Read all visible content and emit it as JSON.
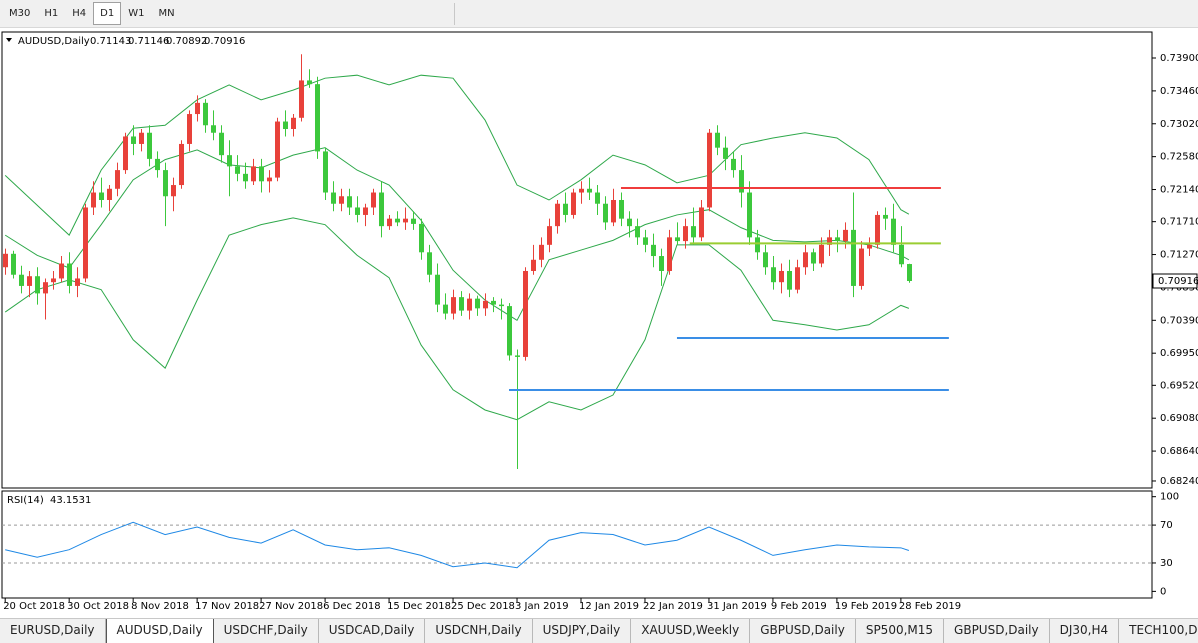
{
  "toolbar": {
    "timeframes": [
      "M30",
      "H1",
      "H4",
      "D1",
      "W1",
      "MN"
    ],
    "active": 3
  },
  "chart_data": [
    {
      "type": "candlestick",
      "title": "AUDUSD,Daily",
      "up_color": "#e8413a",
      "down_color": "#3cc83c",
      "ohlc": [
        [
          0.711,
          0.7135,
          0.71,
          0.7128
        ],
        [
          0.7128,
          0.7132,
          0.7095,
          0.71
        ],
        [
          0.71,
          0.7112,
          0.7075,
          0.7085
        ],
        [
          0.7085,
          0.7105,
          0.707,
          0.7098
        ],
        [
          0.7098,
          0.711,
          0.706,
          0.7075
        ],
        [
          0.7075,
          0.7095,
          0.704,
          0.709
        ],
        [
          0.709,
          0.7105,
          0.708,
          0.7095
        ],
        [
          0.7095,
          0.7125,
          0.709,
          0.7115
        ],
        [
          0.7115,
          0.713,
          0.7075,
          0.7085
        ],
        [
          0.7085,
          0.711,
          0.707,
          0.7095
        ],
        [
          0.7095,
          0.7195,
          0.709,
          0.719
        ],
        [
          0.719,
          0.7225,
          0.718,
          0.721
        ],
        [
          0.721,
          0.723,
          0.719,
          0.72
        ],
        [
          0.72,
          0.722,
          0.7185,
          0.7215
        ],
        [
          0.7215,
          0.725,
          0.7205,
          0.724
        ],
        [
          0.724,
          0.729,
          0.7235,
          0.7285
        ],
        [
          0.7285,
          0.73,
          0.726,
          0.7275
        ],
        [
          0.7275,
          0.7295,
          0.7265,
          0.729
        ],
        [
          0.729,
          0.73,
          0.7245,
          0.7255
        ],
        [
          0.7255,
          0.7265,
          0.723,
          0.724
        ],
        [
          0.724,
          0.725,
          0.7165,
          0.7205
        ],
        [
          0.7205,
          0.723,
          0.7185,
          0.722
        ],
        [
          0.722,
          0.728,
          0.7215,
          0.7275
        ],
        [
          0.7275,
          0.732,
          0.7265,
          0.7315
        ],
        [
          0.7315,
          0.734,
          0.7305,
          0.733
        ],
        [
          0.733,
          0.7335,
          0.729,
          0.73
        ],
        [
          0.73,
          0.732,
          0.728,
          0.729
        ],
        [
          0.729,
          0.73,
          0.725,
          0.726
        ],
        [
          0.726,
          0.728,
          0.7205,
          0.7245
        ],
        [
          0.7245,
          0.726,
          0.7225,
          0.7235
        ],
        [
          0.7235,
          0.725,
          0.7215,
          0.7225
        ],
        [
          0.7225,
          0.7255,
          0.722,
          0.7245
        ],
        [
          0.7245,
          0.7255,
          0.721,
          0.7225
        ],
        [
          0.7225,
          0.724,
          0.721,
          0.723
        ],
        [
          0.723,
          0.731,
          0.7225,
          0.7305
        ],
        [
          0.7305,
          0.732,
          0.7285,
          0.7295
        ],
        [
          0.7295,
          0.7315,
          0.7285,
          0.731
        ],
        [
          0.731,
          0.7395,
          0.7305,
          0.736
        ],
        [
          0.736,
          0.7375,
          0.735,
          0.7355
        ],
        [
          0.7355,
          0.7365,
          0.7255,
          0.7265
        ],
        [
          0.7265,
          0.727,
          0.72,
          0.721
        ],
        [
          0.721,
          0.7225,
          0.7185,
          0.7195
        ],
        [
          0.7195,
          0.7215,
          0.7185,
          0.7205
        ],
        [
          0.7205,
          0.7215,
          0.718,
          0.719
        ],
        [
          0.719,
          0.7205,
          0.717,
          0.718
        ],
        [
          0.718,
          0.7195,
          0.7165,
          0.719
        ],
        [
          0.719,
          0.7215,
          0.718,
          0.721
        ],
        [
          0.721,
          0.7225,
          0.715,
          0.7165
        ],
        [
          0.7165,
          0.718,
          0.716,
          0.7175
        ],
        [
          0.7175,
          0.7185,
          0.7165,
          0.717
        ],
        [
          0.717,
          0.719,
          0.716,
          0.7175
        ],
        [
          0.7175,
          0.7185,
          0.716,
          0.7168
        ],
        [
          0.7168,
          0.7175,
          0.712,
          0.713
        ],
        [
          0.713,
          0.714,
          0.709,
          0.71
        ],
        [
          0.71,
          0.7115,
          0.705,
          0.706
        ],
        [
          0.706,
          0.7075,
          0.704,
          0.7048
        ],
        [
          0.7048,
          0.708,
          0.704,
          0.707
        ],
        [
          0.707,
          0.7078,
          0.7045,
          0.7052
        ],
        [
          0.7052,
          0.7075,
          0.704,
          0.7068
        ],
        [
          0.7068,
          0.7072,
          0.7045,
          0.7055
        ],
        [
          0.7055,
          0.7075,
          0.7045,
          0.7065
        ],
        [
          0.7065,
          0.707,
          0.705,
          0.706
        ],
        [
          0.706,
          0.7068,
          0.704,
          0.7058
        ],
        [
          0.7058,
          0.7062,
          0.6985,
          0.6992
        ],
        [
          0.6992,
          0.7,
          0.684,
          0.699
        ],
        [
          0.699,
          0.711,
          0.6985,
          0.7105
        ],
        [
          0.7105,
          0.714,
          0.71,
          0.712
        ],
        [
          0.712,
          0.715,
          0.711,
          0.714
        ],
        [
          0.714,
          0.7175,
          0.713,
          0.7165
        ],
        [
          0.7165,
          0.72,
          0.7155,
          0.7195
        ],
        [
          0.7195,
          0.721,
          0.717,
          0.718
        ],
        [
          0.718,
          0.7215,
          0.7175,
          0.721
        ],
        [
          0.721,
          0.7225,
          0.7195,
          0.7215
        ],
        [
          0.7215,
          0.723,
          0.72,
          0.721
        ],
        [
          0.721,
          0.722,
          0.718,
          0.7195
        ],
        [
          0.7195,
          0.7205,
          0.716,
          0.717
        ],
        [
          0.717,
          0.7215,
          0.7165,
          0.72
        ],
        [
          0.72,
          0.721,
          0.7165,
          0.7175
        ],
        [
          0.7175,
          0.7185,
          0.715,
          0.7165
        ],
        [
          0.7165,
          0.7175,
          0.714,
          0.715
        ],
        [
          0.715,
          0.716,
          0.713,
          0.714
        ],
        [
          0.714,
          0.7155,
          0.711,
          0.7125
        ],
        [
          0.7125,
          0.7135,
          0.7085,
          0.7105
        ],
        [
          0.7105,
          0.716,
          0.71,
          0.715
        ],
        [
          0.715,
          0.717,
          0.714,
          0.7145
        ],
        [
          0.7145,
          0.7175,
          0.7135,
          0.7165
        ],
        [
          0.7165,
          0.719,
          0.714,
          0.715
        ],
        [
          0.715,
          0.72,
          0.7145,
          0.719
        ],
        [
          0.719,
          0.7295,
          0.7185,
          0.729
        ],
        [
          0.729,
          0.73,
          0.726,
          0.727
        ],
        [
          0.727,
          0.7285,
          0.724,
          0.7255
        ],
        [
          0.7255,
          0.7265,
          0.723,
          0.724
        ],
        [
          0.724,
          0.726,
          0.719,
          0.721
        ],
        [
          0.721,
          0.7225,
          0.714,
          0.715
        ],
        [
          0.715,
          0.716,
          0.712,
          0.713
        ],
        [
          0.713,
          0.714,
          0.71,
          0.711
        ],
        [
          0.711,
          0.7125,
          0.708,
          0.709
        ],
        [
          0.709,
          0.7115,
          0.7075,
          0.7105
        ],
        [
          0.7105,
          0.712,
          0.707,
          0.708
        ],
        [
          0.708,
          0.712,
          0.7075,
          0.711
        ],
        [
          0.711,
          0.714,
          0.71,
          0.713
        ],
        [
          0.713,
          0.7135,
          0.7105,
          0.7115
        ],
        [
          0.7115,
          0.715,
          0.711,
          0.714
        ],
        [
          0.714,
          0.716,
          0.7125,
          0.715
        ],
        [
          0.715,
          0.716,
          0.713,
          0.7145
        ],
        [
          0.7145,
          0.717,
          0.7135,
          0.716
        ],
        [
          0.716,
          0.721,
          0.707,
          0.7085
        ],
        [
          0.7085,
          0.7145,
          0.708,
          0.7135
        ],
        [
          0.7135,
          0.715,
          0.7125,
          0.714
        ],
        [
          0.714,
          0.7185,
          0.7135,
          0.718
        ],
        [
          0.718,
          0.719,
          0.716,
          0.7175
        ],
        [
          0.7175,
          0.7195,
          0.713,
          0.714
        ],
        [
          0.714,
          0.7165,
          0.711,
          0.7114
        ],
        [
          0.71143,
          0.71146,
          0.70892,
          0.70916
        ]
      ],
      "bands": {
        "color": "#2ea84a",
        "x": [
          0,
          4,
          8,
          12,
          16,
          20,
          24,
          28,
          32,
          36,
          40,
          44,
          48,
          52,
          56,
          60,
          64,
          68,
          72,
          76,
          80,
          84,
          88,
          92,
          96,
          100,
          104,
          108,
          112,
          113
        ],
        "upper": [
          0.7233,
          0.7193,
          0.7153,
          0.724,
          0.7296,
          0.73,
          0.7334,
          0.7354,
          0.7334,
          0.7347,
          0.7363,
          0.7367,
          0.7354,
          0.7367,
          0.7363,
          0.7307,
          0.722,
          0.72,
          0.7227,
          0.726,
          0.7247,
          0.7223,
          0.7233,
          0.7274,
          0.7283,
          0.729,
          0.7283,
          0.7254,
          0.7187,
          0.7181
        ],
        "middle": [
          0.7153,
          0.7126,
          0.7109,
          0.7167,
          0.7227,
          0.7254,
          0.7267,
          0.7247,
          0.7243,
          0.726,
          0.727,
          0.724,
          0.722,
          0.7173,
          0.7106,
          0.7066,
          0.7039,
          0.712,
          0.7133,
          0.7146,
          0.7167,
          0.718,
          0.7187,
          0.7163,
          0.7146,
          0.7144,
          0.7146,
          0.714,
          0.7126,
          0.712
        ],
        "lower": [
          0.705,
          0.708,
          0.7093,
          0.708,
          0.7013,
          0.6975,
          0.7066,
          0.7153,
          0.7167,
          0.7176,
          0.7167,
          0.7126,
          0.7096,
          0.7006,
          0.6946,
          0.6919,
          0.6906,
          0.693,
          0.6919,
          0.6939,
          0.7013,
          0.714,
          0.714,
          0.7106,
          0.7039,
          0.7033,
          0.7026,
          0.7033,
          0.7059,
          0.7055
        ]
      },
      "levels": [
        {
          "value": 0.7216,
          "color": "#f03c3c",
          "from": 77,
          "to": 117
        },
        {
          "value": 0.7142,
          "color": "#9acd32",
          "from": 85.6,
          "to": 117
        },
        {
          "value": 0.70153,
          "color": "#3a8ee6",
          "from": 84,
          "to": 118
        },
        {
          "value": 0.69457,
          "color": "#3a8ee6",
          "from": 63,
          "to": 118
        }
      ],
      "xlim": [
        -0.4,
        143.4
      ],
      "xticks": [
        {
          "value": 0,
          "label": "20 Oct 2018"
        },
        {
          "value": 8,
          "label": "30 Oct 2018"
        },
        {
          "value": 16,
          "label": "8 Nov 2018"
        },
        {
          "value": 24,
          "label": "17 Nov 2018"
        },
        {
          "value": 32,
          "label": "27 Nov 2018"
        },
        {
          "value": 40,
          "label": "6 Dec 2018"
        },
        {
          "value": 48,
          "label": "15 Dec 2018"
        },
        {
          "value": 56,
          "label": "25 Dec 2018"
        },
        {
          "value": 64,
          "label": "3 Jan 2019"
        },
        {
          "value": 72,
          "label": "12 Jan 2019"
        },
        {
          "value": 80,
          "label": "22 Jan 2019"
        },
        {
          "value": 88,
          "label": "31 Jan 2019"
        },
        {
          "value": 96,
          "label": "9 Feb 2019"
        },
        {
          "value": 104,
          "label": "19 Feb 2019"
        },
        {
          "value": 112,
          "label": "28 Feb 2019"
        }
      ],
      "ylim": [
        0.68146,
        0.74248
      ],
      "yticks": [
        {
          "value": 0.739,
          "label": "0.73900"
        },
        {
          "value": 0.7346,
          "label": "0.73460"
        },
        {
          "value": 0.7302,
          "label": "0.73020"
        },
        {
          "value": 0.7258,
          "label": "0.72580"
        },
        {
          "value": 0.7214,
          "label": "0.72140"
        },
        {
          "value": 0.7171,
          "label": "0.71710"
        },
        {
          "value": 0.7127,
          "label": "0.71270"
        },
        {
          "value": 0.7083,
          "label": "0.70830"
        },
        {
          "value": 0.7039,
          "label": "0.70390"
        },
        {
          "value": 0.6995,
          "label": "0.69950"
        },
        {
          "value": 0.6952,
          "label": "0.69520"
        },
        {
          "value": 0.6908,
          "label": "0.69080"
        },
        {
          "value": 0.6864,
          "label": "0.68640"
        },
        {
          "value": 0.6824,
          "label": "0.68240"
        }
      ]
    },
    {
      "type": "line",
      "title": "RSI(14)",
      "color": "#1e88e5",
      "x": [
        0,
        4,
        8,
        12,
        16,
        20,
        24,
        28,
        32,
        36,
        40,
        44,
        48,
        52,
        56,
        60,
        64,
        68,
        72,
        76,
        80,
        84,
        88,
        92,
        96,
        100,
        104,
        108,
        112,
        113
      ],
      "values": [
        44,
        36,
        44,
        60,
        73,
        60,
        68,
        57,
        51,
        65,
        49,
        44,
        46,
        38,
        26,
        30,
        25,
        54,
        62,
        60,
        49,
        54,
        68,
        54,
        38,
        44,
        49,
        47,
        46,
        43.1531
      ],
      "xlim": [
        -0.4,
        143.4
      ],
      "ylim": [
        -7,
        106
      ],
      "yticks": [
        100,
        70,
        30,
        0
      ],
      "levels": [
        70,
        30
      ]
    }
  ],
  "tabs": {
    "items": [
      "EURUSD,Daily",
      "AUDUSD,Daily",
      "USDCHF,Daily",
      "USDCAD,Daily",
      "USDCNH,Daily",
      "USDJPY,Daily",
      "XAUUSD,Weekly",
      "GBPUSD,Daily",
      "SP500,M15",
      "GBPUSD,Daily",
      "DJ30,H4",
      "TECH100,Daily"
    ],
    "active": 1
  }
}
